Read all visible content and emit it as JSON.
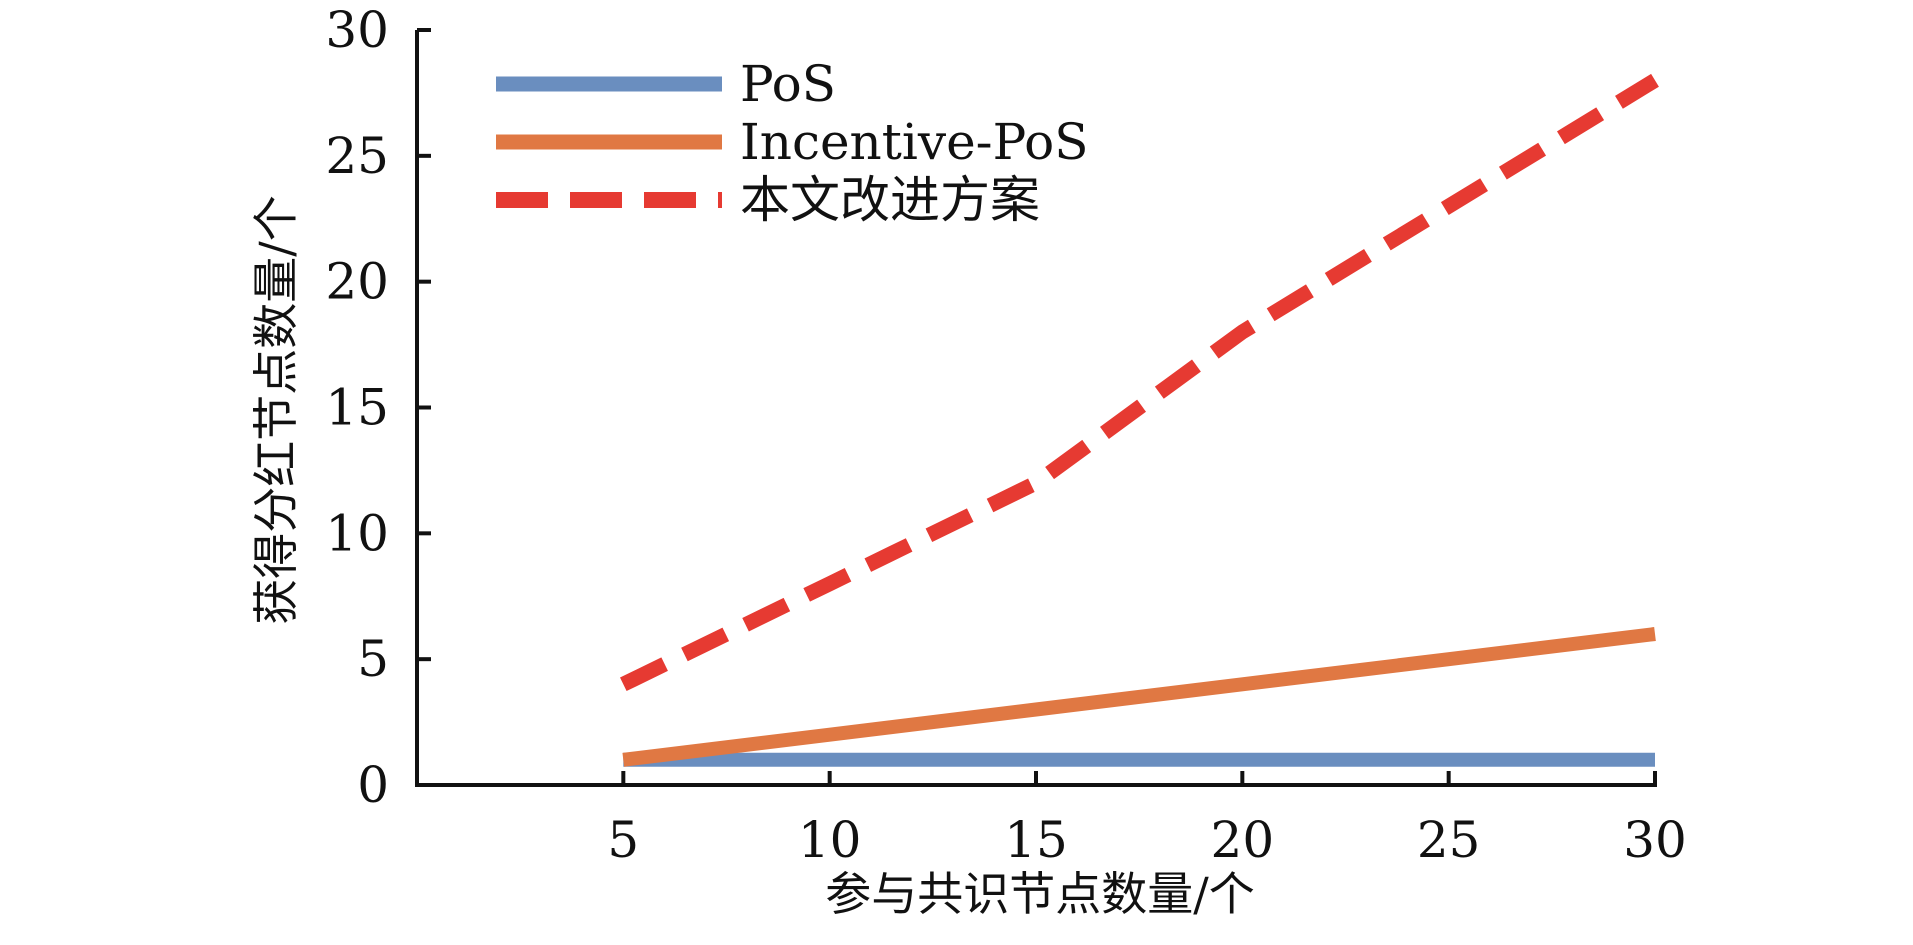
{
  "chart_data": {
    "type": "line",
    "title": "",
    "xlabel": "参与共识节点数量/个",
    "ylabel": "获得分红节点数量/个",
    "x": [
      5,
      10,
      15,
      20,
      25,
      30
    ],
    "x_ticks": [
      "5",
      "10",
      "15",
      "20",
      "25",
      "30"
    ],
    "y_ticks": [
      "0",
      "5",
      "10",
      "15",
      "20",
      "25",
      "30"
    ],
    "xlim": [
      0,
      30
    ],
    "ylim": [
      0,
      30
    ],
    "grid": false,
    "legend_position": "top-left",
    "series": [
      {
        "name": "PoS",
        "values": [
          1,
          1,
          1,
          1,
          1,
          1
        ],
        "color": "#6a8ebf",
        "style": "solid"
      },
      {
        "name": "Incentive-PoS",
        "values": [
          1,
          2,
          3,
          4,
          5,
          6
        ],
        "color": "#e07843",
        "style": "solid"
      },
      {
        "name": "本文改进方案",
        "values": [
          4,
          8,
          12,
          18,
          23,
          28
        ],
        "color": "#e63a32",
        "style": "dashed"
      }
    ]
  }
}
